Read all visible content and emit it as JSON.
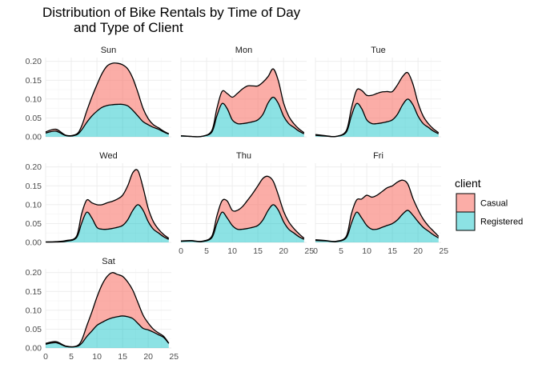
{
  "chart_data": {
    "type": "area",
    "title_lines": [
      "Distribution of Bike Rentals by Time of Day",
      "and Type of Client"
    ],
    "xlabel": "",
    "ylabel": "",
    "xlim": [
      0,
      24
    ],
    "ylim": [
      0,
      0.21
    ],
    "x_ticks": [
      0,
      5,
      10,
      15,
      20,
      25
    ],
    "y_ticks": [
      "0.00",
      "0.05",
      "0.10",
      "0.15",
      "0.20"
    ],
    "y_tick_values": [
      0,
      0.05,
      0.1,
      0.15,
      0.2
    ],
    "grid": true,
    "stacked": true,
    "legend": {
      "title": "client",
      "position": "right",
      "entries": [
        {
          "name": "Casual",
          "color": "#F8766D"
        },
        {
          "name": "Registered",
          "color": "#00BFC4"
        }
      ]
    },
    "x": [
      0,
      2,
      4,
      6,
      7,
      8,
      9,
      10,
      11,
      12,
      13,
      14,
      15,
      16,
      17,
      18,
      19,
      20,
      21,
      22,
      23,
      24
    ],
    "panels": [
      {
        "label": "Sun",
        "series": [
          {
            "name": "Registered",
            "values": [
              0.01,
              0.015,
              0.003,
              0.005,
              0.018,
              0.038,
              0.055,
              0.068,
              0.078,
              0.083,
              0.085,
              0.086,
              0.086,
              0.082,
              0.07,
              0.055,
              0.04,
              0.032,
              0.025,
              0.02,
              0.013,
              0.007
            ]
          },
          {
            "name": "Casual",
            "values": [
              0.003,
              0.005,
              0.001,
              0.002,
              0.01,
              0.03,
              0.05,
              0.07,
              0.09,
              0.105,
              0.11,
              0.109,
              0.105,
              0.098,
              0.085,
              0.062,
              0.035,
              0.016,
              0.007,
              0.004,
              0.002,
              0.001
            ]
          }
        ]
      },
      {
        "label": "Mon",
        "series": [
          {
            "name": "Registered",
            "values": [
              0.002,
              0.001,
              0.001,
              0.012,
              0.055,
              0.088,
              0.075,
              0.045,
              0.035,
              0.035,
              0.037,
              0.04,
              0.045,
              0.06,
              0.09,
              0.105,
              0.088,
              0.055,
              0.035,
              0.025,
              0.015,
              0.008
            ]
          },
          {
            "name": "Casual",
            "values": [
              0.001,
              0.0,
              0.0,
              0.004,
              0.02,
              0.032,
              0.04,
              0.06,
              0.08,
              0.092,
              0.098,
              0.095,
              0.09,
              0.085,
              0.07,
              0.075,
              0.06,
              0.035,
              0.02,
              0.01,
              0.006,
              0.003
            ]
          }
        ]
      },
      {
        "label": "Tue",
        "series": [
          {
            "name": "Registered",
            "values": [
              0.004,
              0.002,
              0.001,
              0.012,
              0.055,
              0.088,
              0.075,
              0.045,
              0.035,
              0.035,
              0.037,
              0.04,
              0.045,
              0.06,
              0.085,
              0.1,
              0.085,
              0.055,
              0.035,
              0.025,
              0.015,
              0.008
            ]
          },
          {
            "name": "Casual",
            "values": [
              0.002,
              0.001,
              0.0,
              0.004,
              0.02,
              0.035,
              0.048,
              0.065,
              0.075,
              0.08,
              0.082,
              0.08,
              0.075,
              0.078,
              0.075,
              0.07,
              0.055,
              0.035,
              0.02,
              0.01,
              0.006,
              0.003
            ]
          }
        ]
      },
      {
        "label": "Wed",
        "series": [
          {
            "name": "Registered",
            "values": [
              0.001,
              0.001,
              0.003,
              0.012,
              0.05,
              0.08,
              0.065,
              0.04,
              0.035,
              0.035,
              0.037,
              0.04,
              0.045,
              0.06,
              0.085,
              0.1,
              0.085,
              0.055,
              0.035,
              0.025,
              0.015,
              0.008
            ]
          },
          {
            "name": "Casual",
            "values": [
              0.0,
              0.001,
              0.002,
              0.004,
              0.025,
              0.032,
              0.04,
              0.06,
              0.065,
              0.07,
              0.072,
              0.075,
              0.08,
              0.09,
              0.1,
              0.09,
              0.06,
              0.035,
              0.02,
              0.01,
              0.006,
              0.003
            ]
          }
        ]
      },
      {
        "label": "Thu",
        "series": [
          {
            "name": "Registered",
            "values": [
              0.003,
              0.004,
              0.002,
              0.012,
              0.05,
              0.08,
              0.065,
              0.045,
              0.035,
              0.035,
              0.037,
              0.04,
              0.045,
              0.06,
              0.085,
              0.1,
              0.085,
              0.055,
              0.035,
              0.025,
              0.015,
              0.008
            ]
          },
          {
            "name": "Casual",
            "values": [
              0.001,
              0.001,
              0.001,
              0.004,
              0.02,
              0.03,
              0.045,
              0.04,
              0.05,
              0.06,
              0.075,
              0.09,
              0.105,
              0.11,
              0.09,
              0.062,
              0.04,
              0.028,
              0.02,
              0.012,
              0.008,
              0.003
            ]
          }
        ]
      },
      {
        "label": "Fri",
        "series": [
          {
            "name": "Registered",
            "values": [
              0.005,
              0.004,
              0.002,
              0.012,
              0.05,
              0.08,
              0.065,
              0.045,
              0.035,
              0.035,
              0.04,
              0.045,
              0.05,
              0.06,
              0.075,
              0.085,
              0.072,
              0.055,
              0.04,
              0.03,
              0.02,
              0.012
            ]
          },
          {
            "name": "Casual",
            "values": [
              0.002,
              0.001,
              0.001,
              0.004,
              0.025,
              0.032,
              0.05,
              0.08,
              0.085,
              0.09,
              0.095,
              0.1,
              0.1,
              0.1,
              0.09,
              0.07,
              0.045,
              0.032,
              0.022,
              0.014,
              0.01,
              0.004
            ]
          }
        ]
      },
      {
        "label": "Sat",
        "series": [
          {
            "name": "Registered",
            "values": [
              0.01,
              0.014,
              0.004,
              0.004,
              0.012,
              0.03,
              0.045,
              0.06,
              0.068,
              0.075,
              0.08,
              0.083,
              0.085,
              0.083,
              0.078,
              0.065,
              0.052,
              0.048,
              0.042,
              0.035,
              0.028,
              0.012
            ]
          },
          {
            "name": "Casual",
            "values": [
              0.002,
              0.003,
              0.001,
              0.001,
              0.008,
              0.028,
              0.05,
              0.075,
              0.1,
              0.115,
              0.12,
              0.112,
              0.105,
              0.092,
              0.075,
              0.055,
              0.035,
              0.018,
              0.008,
              0.005,
              0.003,
              0.001
            ]
          }
        ]
      }
    ]
  }
}
